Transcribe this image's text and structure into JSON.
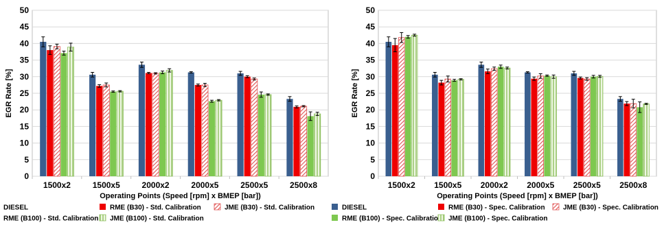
{
  "colors": {
    "diesel": "#3a5f8f",
    "rme_b30": "#ee0000",
    "jme_b30_hatch": "#e05050",
    "rme_b100": "#7ec850",
    "jme_b100_hatch": "#8fc060",
    "grid": "#d9d9d9",
    "error_bar": "#000000"
  },
  "chart_data": [
    {
      "type": "bar",
      "panel": "left",
      "ylabel": "EGR Rate [%]",
      "xlabel": "Operating  Points (Speed [rpm] x BMEP [bar])",
      "ylim": [
        0,
        50
      ],
      "yticks": [
        0,
        5,
        10,
        15,
        20,
        25,
        30,
        35,
        40,
        45,
        50
      ],
      "grid": true,
      "legend_position": "bottom",
      "categories": [
        "1500x2",
        "1500x5",
        "2000x2",
        "2000x5",
        "2500x5",
        "2500x8"
      ],
      "series": [
        {
          "name": "DIESEL",
          "style": "diesel",
          "values": [
            40.5,
            30.6,
            33.6,
            31.3,
            31.0,
            23.3
          ],
          "errors": [
            1.5,
            0.7,
            0.8,
            0.2,
            0.6,
            0.7
          ]
        },
        {
          "name": "RME (B30) - Std. Calibration",
          "style": "rme_b30",
          "values": [
            38.0,
            27.2,
            31.1,
            27.5,
            30.0,
            20.9
          ],
          "errors": [
            1.3,
            0.4,
            0.2,
            0.3,
            0.3,
            0.3
          ]
        },
        {
          "name": "JME (B30) - Std. Calibration",
          "style": "jme_b30_hatch",
          "values": [
            39.1,
            27.5,
            31.0,
            27.5,
            29.3,
            21.1
          ],
          "errors": [
            0.7,
            0.6,
            0.2,
            0.5,
            0.3,
            0.2
          ]
        },
        {
          "name": "RME (B100) - Std. Calibration",
          "style": "rme_b100",
          "values": [
            37.1,
            25.5,
            31.3,
            22.6,
            24.6,
            18.1
          ],
          "errors": [
            0.6,
            0.2,
            0.4,
            0.3,
            0.8,
            1.3
          ]
        },
        {
          "name": "JME (B100) - Std. Calibration",
          "style": "jme_b100_hatch",
          "values": [
            38.9,
            25.6,
            31.9,
            22.9,
            24.6,
            18.8
          ],
          "errors": [
            1.2,
            0.2,
            0.5,
            0.2,
            0.2,
            0.5
          ]
        }
      ]
    },
    {
      "type": "bar",
      "panel": "right",
      "ylabel": "EGR Rate [%]",
      "xlabel": "Operating  Points (Speed [rpm] x BMEP [bar])",
      "ylim": [
        0,
        50
      ],
      "yticks": [
        0,
        5,
        10,
        15,
        20,
        25,
        30,
        35,
        40,
        45,
        50
      ],
      "grid": true,
      "legend_position": "bottom",
      "categories": [
        "1500x2",
        "1500x5",
        "2000x2",
        "2000x5",
        "2500x5",
        "2500x8"
      ],
      "series": [
        {
          "name": "DIESEL",
          "style": "diesel",
          "values": [
            40.5,
            30.6,
            33.6,
            31.3,
            31.0,
            23.3
          ],
          "errors": [
            1.5,
            0.7,
            0.8,
            0.2,
            0.6,
            0.7
          ]
        },
        {
          "name": "RME (B30) - Spec. Calibration",
          "style": "rme_b30",
          "values": [
            39.5,
            28.2,
            31.6,
            29.4,
            29.6,
            21.9
          ],
          "errors": [
            2.0,
            0.7,
            0.7,
            0.5,
            0.3,
            0.6
          ]
        },
        {
          "name": "JME (B30) - Spec. Calibration",
          "style": "jme_b30_hatch",
          "values": [
            41.8,
            29.3,
            32.4,
            30.2,
            29.3,
            21.9
          ],
          "errors": [
            1.5,
            0.9,
            0.5,
            0.7,
            0.4,
            1.3
          ]
        },
        {
          "name": "RME (B100) - Spec. Calibration",
          "style": "rme_b100",
          "values": [
            42.0,
            28.9,
            33.0,
            30.3,
            30.0,
            20.8
          ],
          "errors": [
            0.4,
            0.3,
            0.5,
            0.2,
            0.4,
            1.6
          ]
        },
        {
          "name": "JME (B100) - Spec. Calibration",
          "style": "jme_b100_hatch",
          "values": [
            42.5,
            29.2,
            32.6,
            30.0,
            30.1,
            21.8
          ],
          "errors": [
            0.3,
            0.2,
            0.3,
            0.5,
            0.3,
            0.2
          ]
        }
      ]
    }
  ]
}
